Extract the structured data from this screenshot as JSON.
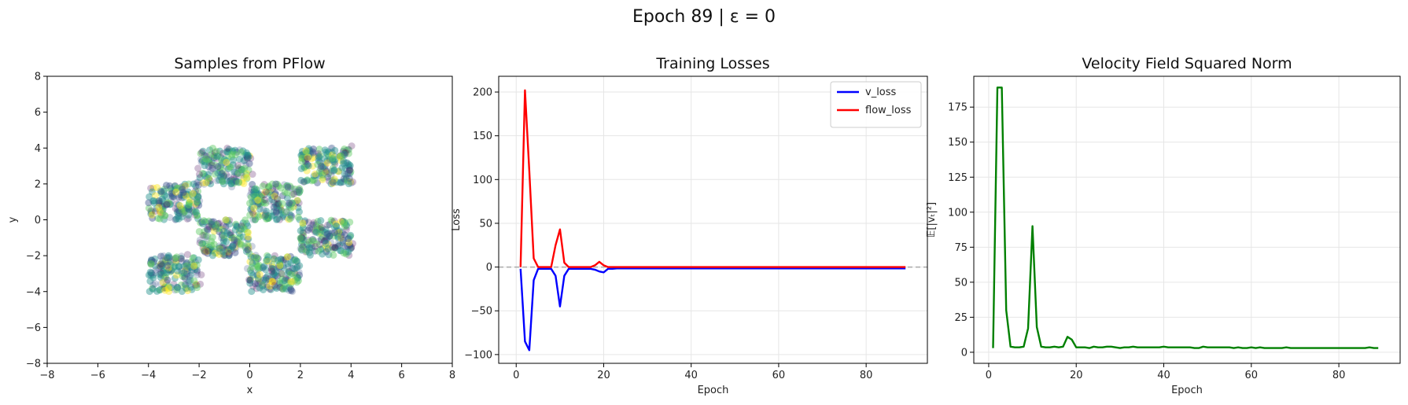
{
  "figure_title": "Epoch 89 | ε = 0",
  "chart_data": [
    {
      "type": "scatter",
      "title": "Samples from PFlow",
      "xlabel": "x",
      "ylabel": "y",
      "xlim": [
        -8,
        8
      ],
      "ylim": [
        -8,
        8
      ],
      "xticks": [
        -8,
        -6,
        -4,
        -2,
        0,
        2,
        4,
        6,
        8
      ],
      "yticks": [
        -8,
        -6,
        -4,
        -2,
        0,
        2,
        4,
        6,
        8
      ],
      "grid": false,
      "colormap": [
        "#440154",
        "#3b528b",
        "#21918c",
        "#5ec962",
        "#fde725"
      ],
      "clusters": [
        {
          "x": [
            -4,
            -2
          ],
          "y": [
            0,
            2
          ]
        },
        {
          "x": [
            -2,
            0
          ],
          "y": [
            2,
            4
          ]
        },
        {
          "x": [
            0,
            2
          ],
          "y": [
            0,
            2
          ]
        },
        {
          "x": [
            2,
            4
          ],
          "y": [
            2,
            4
          ]
        },
        {
          "x": [
            -2,
            0
          ],
          "y": [
            -2,
            0
          ]
        },
        {
          "x": [
            2,
            4
          ],
          "y": [
            -2,
            0
          ]
        },
        {
          "x": [
            -4,
            -2
          ],
          "y": [
            -4,
            -2
          ]
        },
        {
          "x": [
            0,
            2
          ],
          "y": [
            -4,
            -2
          ]
        }
      ]
    },
    {
      "type": "line",
      "title": "Training Losses",
      "xlabel": "Epoch",
      "ylabel": "Loss",
      "xlim": [
        -4,
        94
      ],
      "ylim": [
        -110,
        218
      ],
      "xticks": [
        0,
        20,
        40,
        60,
        80
      ],
      "yticks": [
        -100,
        -50,
        0,
        50,
        100,
        150,
        200
      ],
      "grid": true,
      "legend": "upper right",
      "hline": {
        "y": 0,
        "style": "dashed",
        "color": "#aaaaaa"
      },
      "series": [
        {
          "name": "v_loss",
          "color": "#0000ff",
          "x": [
            1,
            2,
            3,
            4,
            5,
            6,
            7,
            8,
            9,
            10,
            11,
            12,
            13,
            14,
            15,
            16,
            17,
            18,
            19,
            20,
            21,
            22,
            23,
            24,
            25,
            26,
            27,
            28,
            29,
            30,
            31,
            32,
            33,
            34,
            35,
            36,
            37,
            38,
            39,
            40,
            41,
            42,
            43,
            44,
            45,
            46,
            47,
            48,
            49,
            50,
            51,
            52,
            53,
            54,
            55,
            56,
            57,
            58,
            59,
            60,
            61,
            62,
            63,
            64,
            65,
            66,
            67,
            68,
            69,
            70,
            71,
            72,
            73,
            74,
            75,
            76,
            77,
            78,
            79,
            80,
            81,
            82,
            83,
            84,
            85,
            86,
            87,
            88,
            89
          ],
          "y": [
            -2,
            -85,
            -95,
            -15,
            -2,
            -2,
            -2,
            -2,
            -10,
            -45,
            -10,
            -2,
            -2,
            -2,
            -2,
            -2,
            -2,
            -3,
            -5,
            -6,
            -2,
            -2,
            -1.5,
            -1.5,
            -1.5,
            -1.5,
            -1.5,
            -1.5,
            -1.5,
            -1.5,
            -1.5,
            -1.5,
            -1.5,
            -1.5,
            -1.5,
            -1.5,
            -1.5,
            -1.5,
            -1.5,
            -1.5,
            -1.5,
            -1.5,
            -1.5,
            -1.5,
            -1.5,
            -1.5,
            -1.5,
            -1.5,
            -1.5,
            -1.5,
            -1.5,
            -1.5,
            -1.5,
            -1.5,
            -1.5,
            -1.5,
            -1.5,
            -1.5,
            -1.5,
            -1.5,
            -1.5,
            -1.5,
            -1.5,
            -1.5,
            -1.5,
            -1.5,
            -1.5,
            -1.5,
            -1.5,
            -1.5,
            -1.5,
            -1.5,
            -1.5,
            -1.5,
            -1.5,
            -1.5,
            -1.5,
            -1.5,
            -1.5,
            -1.5,
            -1.5,
            -1.5,
            -1.5,
            -1.5,
            -1.5,
            -1.5,
            -1.5,
            -1.5,
            -1.5
          ]
        },
        {
          "name": "flow_loss",
          "color": "#ff0000",
          "x": [
            1,
            2,
            3,
            4,
            5,
            6,
            7,
            8,
            9,
            10,
            11,
            12,
            13,
            14,
            15,
            16,
            17,
            18,
            19,
            20,
            21,
            22,
            23,
            24,
            25,
            26,
            27,
            28,
            29,
            30,
            31,
            32,
            33,
            34,
            35,
            36,
            37,
            38,
            39,
            40,
            41,
            42,
            43,
            44,
            45,
            46,
            47,
            48,
            49,
            50,
            51,
            52,
            53,
            54,
            55,
            56,
            57,
            58,
            59,
            60,
            61,
            62,
            63,
            64,
            65,
            66,
            67,
            68,
            69,
            70,
            71,
            72,
            73,
            74,
            75,
            76,
            77,
            78,
            79,
            80,
            81,
            82,
            83,
            84,
            85,
            86,
            87,
            88,
            89
          ],
          "y": [
            0,
            202,
            110,
            10,
            0,
            0,
            0,
            0,
            25,
            43,
            5,
            0,
            0,
            0,
            0,
            0,
            0,
            2,
            6,
            2,
            0,
            0,
            0,
            0,
            0,
            0,
            0,
            0,
            0,
            0,
            0,
            0,
            0,
            0,
            0,
            0,
            0,
            0,
            0,
            0,
            0,
            0,
            0,
            0,
            0,
            0,
            0,
            0,
            0,
            0,
            0,
            0,
            0,
            0,
            0,
            0,
            0,
            0,
            0,
            0,
            0,
            0,
            0,
            0,
            0,
            0,
            0,
            0,
            0,
            0,
            0,
            0,
            0,
            0,
            0,
            0,
            0,
            0,
            0,
            0,
            0,
            0,
            0,
            0,
            0,
            0,
            0,
            0,
            0
          ]
        }
      ]
    },
    {
      "type": "line",
      "title": "Velocity Field Squared Norm",
      "xlabel": "Epoch",
      "ylabel": "𝔼[|vₜ|²]",
      "xlim": [
        -3.4,
        94
      ],
      "ylim": [
        -7.9,
        197
      ],
      "xticks": [
        0,
        20,
        40,
        60,
        80
      ],
      "yticks": [
        0,
        25,
        50,
        75,
        100,
        125,
        150,
        175
      ],
      "grid": true,
      "series": [
        {
          "color": "#008000",
          "x": [
            1,
            2,
            3,
            4,
            5,
            6,
            7,
            8,
            9,
            10,
            11,
            12,
            13,
            14,
            15,
            16,
            17,
            18,
            19,
            20,
            21,
            22,
            23,
            24,
            25,
            26,
            27,
            28,
            29,
            30,
            31,
            32,
            33,
            34,
            35,
            36,
            37,
            38,
            39,
            40,
            41,
            42,
            43,
            44,
            45,
            46,
            47,
            48,
            49,
            50,
            51,
            52,
            53,
            54,
            55,
            56,
            57,
            58,
            59,
            60,
            61,
            62,
            63,
            64,
            65,
            66,
            67,
            68,
            69,
            70,
            71,
            72,
            73,
            74,
            75,
            76,
            77,
            78,
            79,
            80,
            81,
            82,
            83,
            84,
            85,
            86,
            87,
            88,
            89
          ],
          "y": [
            3,
            189,
            189,
            30,
            4,
            3.5,
            3.5,
            4,
            17,
            90,
            18,
            4,
            3.5,
            3.5,
            4,
            3.5,
            4,
            11,
            9,
            3.5,
            3.5,
            3.5,
            3,
            4,
            3.5,
            3.5,
            4,
            4,
            3.5,
            3,
            3.5,
            3.5,
            4,
            3.5,
            3.5,
            3.5,
            3.5,
            3.5,
            3.5,
            4,
            3.5,
            3.5,
            3.5,
            3.5,
            3.5,
            3.5,
            3,
            3,
            4,
            3.5,
            3.5,
            3.5,
            3.5,
            3.5,
            3.5,
            3,
            3.5,
            3,
            3,
            3.5,
            3,
            3.5,
            3,
            3,
            3,
            3,
            3,
            3.5,
            3,
            3,
            3,
            3,
            3,
            3,
            3,
            3,
            3,
            3,
            3,
            3,
            3,
            3,
            3,
            3,
            3,
            3,
            3.5,
            3,
            3
          ]
        }
      ]
    }
  ]
}
